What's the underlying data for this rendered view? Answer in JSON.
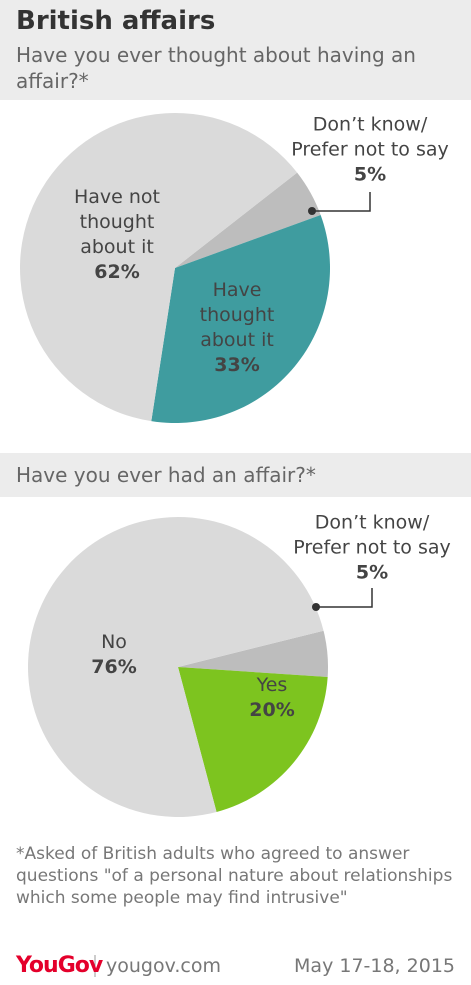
{
  "title": "British affairs",
  "chart_data": [
    {
      "type": "pie",
      "title": "Have you ever thought about having an affair?*",
      "categories": [
        "Don’t know/ Prefer not to say",
        "Have thought about it",
        "Have not thought about it"
      ],
      "values": [
        5,
        33,
        62
      ],
      "value_labels": [
        "5%",
        "33%",
        "62%"
      ],
      "colors": [
        "#bdbdbd",
        "#3f9c9f",
        "#dadada"
      ]
    },
    {
      "type": "pie",
      "title": "Have you ever had an affair?*",
      "categories": [
        "Don’t know/ Prefer not to say",
        "Yes",
        "No"
      ],
      "values": [
        5,
        20,
        76
      ],
      "value_labels": [
        "5%",
        "20%",
        "76%"
      ],
      "colors": [
        "#bdbdbd",
        "#7dc41f",
        "#dadada"
      ]
    }
  ],
  "footnote": "*Asked of British adults who agreed to answer questions \"of a personal nature about relationships which some people may find intrusive\"",
  "brand": "YouGov",
  "website": "yougov.com",
  "date": "May 17-18, 2015"
}
